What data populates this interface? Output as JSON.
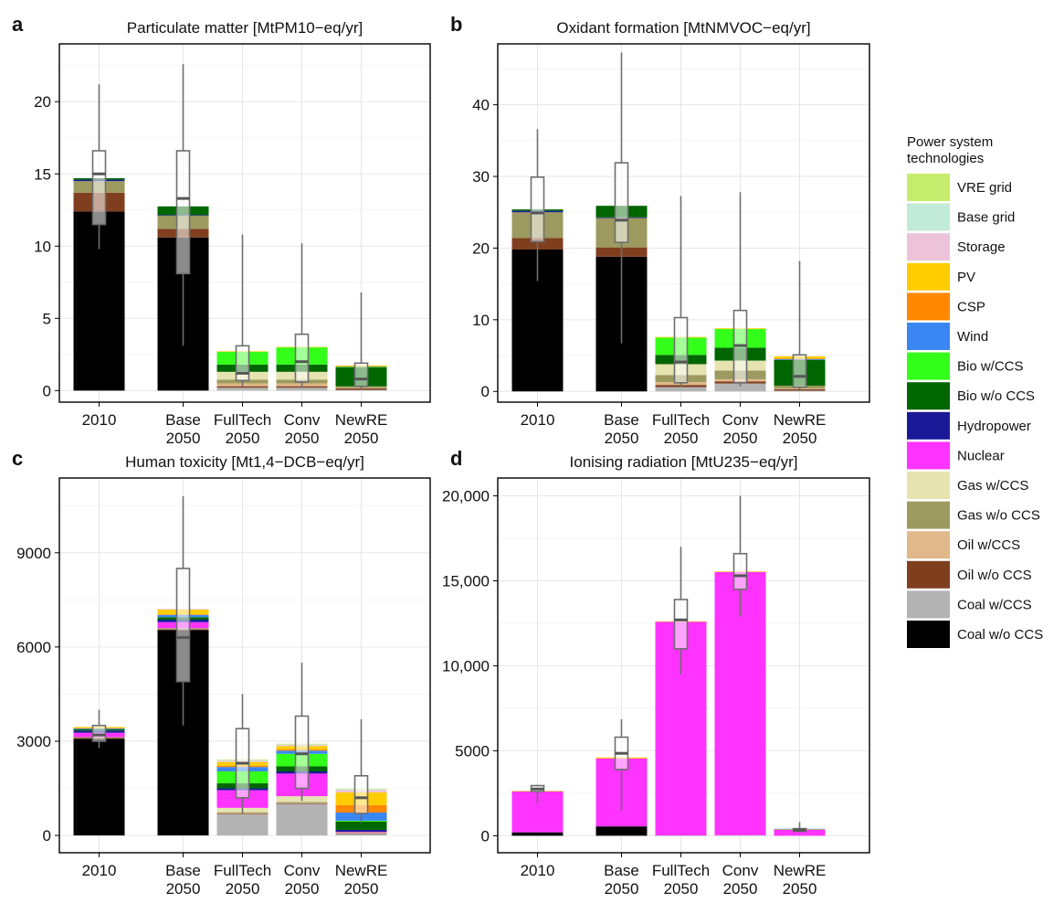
{
  "legend": {
    "title_lines": [
      "Power system",
      "technologies"
    ],
    "items": [
      {
        "label": "VRE grid",
        "color": "#c6ec6e"
      },
      {
        "label": "Base grid",
        "color": "#c2ead8"
      },
      {
        "label": "Storage",
        "color": "#ecc3d8"
      },
      {
        "label": "PV",
        "color": "#ffcc00"
      },
      {
        "label": "CSP",
        "color": "#ff8800"
      },
      {
        "label": "Wind",
        "color": "#3a86f2"
      },
      {
        "label": "Bio w/CCS",
        "color": "#33ff1a"
      },
      {
        "label": "Bio w/o CCS",
        "color": "#006600"
      },
      {
        "label": "Hydropower",
        "color": "#1a1a99"
      },
      {
        "label": "Nuclear",
        "color": "#ff33ff"
      },
      {
        "label": "Gas w/CCS",
        "color": "#e5e4b0"
      },
      {
        "label": "Gas w/o CCS",
        "color": "#9c9a5e"
      },
      {
        "label": "Oil w/CCS",
        "color": "#e1b889"
      },
      {
        "label": "Oil w/o CCS",
        "color": "#7f3f1f"
      },
      {
        "label": "Coal w/CCS",
        "color": "#b3b3b3"
      },
      {
        "label": "Coal w/o CCS",
        "color": "#000000"
      }
    ]
  },
  "chart_data": [
    {
      "letter": "a",
      "type": "bar",
      "stacked": true,
      "title": "Particulate matter [MtPM10−eq/yr]",
      "categories": [
        [
          "2010"
        ],
        [
          "Base",
          "2050"
        ],
        [
          "FullTech",
          "2050"
        ],
        [
          "Conv",
          "2050"
        ],
        [
          "NewRE",
          "2050"
        ]
      ],
      "ylim": [
        -0.8,
        24.0
      ],
      "yticks": [
        0,
        5,
        10,
        15,
        20
      ],
      "ytick_labels": [
        "0",
        "5",
        "10",
        "15",
        "20"
      ],
      "grid": true,
      "series": [
        {
          "name": "Coal w/o CCS",
          "values": [
            12.4,
            10.6,
            0.0,
            0.0,
            0.0
          ]
        },
        {
          "name": "Coal w/CCS",
          "values": [
            0.0,
            0.0,
            0.2,
            0.2,
            0.05
          ]
        },
        {
          "name": "Oil w/o CCS",
          "values": [
            1.3,
            0.6,
            0.1,
            0.1,
            0.1
          ]
        },
        {
          "name": "Oil w/CCS",
          "values": [
            0.0,
            0.0,
            0.2,
            0.2,
            0.05
          ]
        },
        {
          "name": "Gas w/o CCS",
          "values": [
            0.8,
            0.9,
            0.25,
            0.25,
            0.1
          ]
        },
        {
          "name": "Gas w/CCS",
          "values": [
            0.0,
            0.0,
            0.55,
            0.55,
            0.0
          ]
        },
        {
          "name": "Nuclear",
          "values": [
            0.0,
            0.0,
            0.0,
            0.0,
            0.0
          ]
        },
        {
          "name": "Hydropower",
          "values": [
            0.1,
            0.05,
            0.0,
            0.0,
            0.0
          ]
        },
        {
          "name": "Bio w/o CCS",
          "values": [
            0.1,
            0.6,
            0.5,
            0.5,
            1.3
          ]
        },
        {
          "name": "Bio w/CCS",
          "values": [
            0.0,
            0.0,
            0.9,
            1.2,
            0.05
          ]
        },
        {
          "name": "Wind",
          "values": [
            0.0,
            0.0,
            0.0,
            0.0,
            0.02
          ]
        },
        {
          "name": "CSP",
          "values": [
            0.0,
            0.0,
            0.0,
            0.0,
            0.02
          ]
        },
        {
          "name": "PV",
          "values": [
            0.0,
            0.0,
            0.02,
            0.02,
            0.05
          ]
        }
      ],
      "boxes": [
        {
          "min": 9.8,
          "q1": 11.5,
          "median": 15.0,
          "q3": 16.6,
          "max": 21.2
        },
        {
          "min": 3.1,
          "q1": 8.1,
          "median": 13.3,
          "q3": 16.6,
          "max": 22.6
        },
        {
          "min": 0.3,
          "q1": 0.7,
          "median": 1.2,
          "q3": 3.1,
          "max": 10.8
        },
        {
          "min": 0.2,
          "q1": 0.6,
          "median": 2.0,
          "q3": 3.9,
          "max": 10.2
        },
        {
          "min": 0.1,
          "q1": 0.3,
          "median": 0.8,
          "q3": 1.9,
          "max": 6.8
        }
      ]
    },
    {
      "letter": "b",
      "type": "bar",
      "stacked": true,
      "title": "Oxidant formation [MtNMVOC−eq/yr]",
      "categories": [
        [
          "2010"
        ],
        [
          "Base",
          "2050"
        ],
        [
          "FullTech",
          "2050"
        ],
        [
          "Conv",
          "2050"
        ],
        [
          "NewRE",
          "2050"
        ]
      ],
      "ylim": [
        -1.5,
        48.5
      ],
      "yticks": [
        0,
        10,
        20,
        30,
        40
      ],
      "ytick_labels": [
        "0",
        "10",
        "20",
        "30",
        "40"
      ],
      "grid": true,
      "series": [
        {
          "name": "Coal w/o CCS",
          "values": [
            19.8,
            18.8,
            0.0,
            0.0,
            0.0
          ]
        },
        {
          "name": "Coal w/CCS",
          "values": [
            0.0,
            0.0,
            0.6,
            1.1,
            0.1
          ]
        },
        {
          "name": "Oil w/o CCS",
          "values": [
            1.6,
            1.3,
            0.3,
            0.3,
            0.2
          ]
        },
        {
          "name": "Oil w/CCS",
          "values": [
            0.0,
            0.0,
            0.4,
            0.3,
            0.1
          ]
        },
        {
          "name": "Gas w/o CCS",
          "values": [
            3.6,
            4.1,
            1.0,
            1.2,
            0.4
          ]
        },
        {
          "name": "Gas w/CCS",
          "values": [
            0.0,
            0.0,
            1.5,
            1.4,
            0.0
          ]
        },
        {
          "name": "Nuclear",
          "values": [
            0.0,
            0.0,
            0.0,
            0.0,
            0.0
          ]
        },
        {
          "name": "Hydropower",
          "values": [
            0.2,
            0.1,
            0.0,
            0.0,
            0.0
          ]
        },
        {
          "name": "Bio w/o CCS",
          "values": [
            0.2,
            1.6,
            1.3,
            1.8,
            3.6
          ]
        },
        {
          "name": "Bio w/CCS",
          "values": [
            0.0,
            0.0,
            2.4,
            2.6,
            0.0
          ]
        },
        {
          "name": "Wind",
          "values": [
            0.0,
            0.0,
            0.0,
            0.0,
            0.1
          ]
        },
        {
          "name": "CSP",
          "values": [
            0.0,
            0.0,
            0.0,
            0.0,
            0.1
          ]
        },
        {
          "name": "PV",
          "values": [
            0.0,
            0.0,
            0.1,
            0.1,
            0.3
          ]
        }
      ],
      "boxes": [
        {
          "min": 15.4,
          "q1": 20.9,
          "median": 24.9,
          "q3": 29.9,
          "max": 36.6
        },
        {
          "min": 6.7,
          "q1": 20.8,
          "median": 23.9,
          "q3": 31.9,
          "max": 47.3
        },
        {
          "min": 0.6,
          "q1": 1.2,
          "median": 4.1,
          "q3": 10.3,
          "max": 27.3
        },
        {
          "min": 0.7,
          "q1": 1.2,
          "median": 6.4,
          "q3": 11.3,
          "max": 27.8
        },
        {
          "min": 0.3,
          "q1": 0.6,
          "median": 2.1,
          "q3": 5.1,
          "max": 18.2
        }
      ]
    },
    {
      "letter": "c",
      "type": "bar",
      "stacked": true,
      "title": "Human toxicity [Mt1,4−DCB−eq/yr]",
      "categories": [
        [
          "2010"
        ],
        [
          "Base",
          "2050"
        ],
        [
          "FullTech",
          "2050"
        ],
        [
          "Conv",
          "2050"
        ],
        [
          "NewRE",
          "2050"
        ]
      ],
      "ylim": [
        -550,
        11380
      ],
      "yticks": [
        0,
        3000,
        6000,
        9000
      ],
      "ytick_labels": [
        "0",
        "3000",
        "6000",
        "9000"
      ],
      "grid": true,
      "series": [
        {
          "name": "Coal w/o CCS",
          "values": [
            3080,
            6540,
            0,
            0,
            0
          ]
        },
        {
          "name": "Coal w/CCS",
          "values": [
            0,
            0,
            680,
            1010,
            60
          ]
        },
        {
          "name": "Oil w/o CCS",
          "values": [
            20,
            20,
            10,
            10,
            10
          ]
        },
        {
          "name": "Oil w/CCS",
          "values": [
            0,
            0,
            20,
            20,
            10
          ]
        },
        {
          "name": "Gas w/o CCS",
          "values": [
            30,
            40,
            30,
            30,
            20
          ]
        },
        {
          "name": "Gas w/CCS",
          "values": [
            0,
            0,
            140,
            180,
            0
          ]
        },
        {
          "name": "Nuclear",
          "values": [
            140,
            190,
            560,
            720,
            20
          ]
        },
        {
          "name": "Hydropower",
          "values": [
            70,
            80,
            60,
            70,
            60
          ]
        },
        {
          "name": "Bio w/o CCS",
          "values": [
            40,
            80,
            160,
            160,
            260
          ]
        },
        {
          "name": "Bio w/CCS",
          "values": [
            0,
            0,
            380,
            400,
            30
          ]
        },
        {
          "name": "Wind",
          "values": [
            30,
            70,
            140,
            100,
            260
          ]
        },
        {
          "name": "CSP",
          "values": [
            10,
            20,
            40,
            40,
            240
          ]
        },
        {
          "name": "PV",
          "values": [
            30,
            150,
            120,
            110,
            400
          ]
        },
        {
          "name": "Storage",
          "values": [
            0,
            20,
            40,
            30,
            80
          ]
        },
        {
          "name": "Base grid",
          "values": [
            0,
            0,
            20,
            20,
            10
          ]
        },
        {
          "name": "VRE grid",
          "values": [
            0,
            0,
            20,
            20,
            20
          ]
        }
      ],
      "boxes": [
        {
          "min": 2780,
          "q1": 3000,
          "median": 3200,
          "q3": 3500,
          "max": 4000
        },
        {
          "min": 3500,
          "q1": 4900,
          "median": 6300,
          "q3": 8500,
          "max": 10800
        },
        {
          "min": 700,
          "q1": 1200,
          "median": 2300,
          "q3": 3400,
          "max": 4500
        },
        {
          "min": 1100,
          "q1": 1500,
          "median": 2600,
          "q3": 3800,
          "max": 5500
        },
        {
          "min": 400,
          "q1": 700,
          "median": 1200,
          "q3": 1900,
          "max": 3700
        }
      ]
    },
    {
      "letter": "d",
      "type": "bar",
      "stacked": true,
      "title": "Ionising radiation [MtU235−eq/yr]",
      "categories": [
        [
          "2010"
        ],
        [
          "Base",
          "2050"
        ],
        [
          "FullTech",
          "2050"
        ],
        [
          "Conv",
          "2050"
        ],
        [
          "NewRE",
          "2050"
        ]
      ],
      "ylim": [
        -1000,
        21050
      ],
      "yticks": [
        0,
        5000,
        10000,
        15000,
        20000
      ],
      "ytick_labels": [
        "0",
        "5000",
        "10,000",
        "15,000",
        "20,000"
      ],
      "grid": true,
      "series": [
        {
          "name": "Coal w/o CCS",
          "values": [
            200,
            550,
            0,
            0,
            0
          ]
        },
        {
          "name": "Coal w/CCS",
          "values": [
            0,
            0,
            20,
            30,
            0
          ]
        },
        {
          "name": "Nuclear",
          "values": [
            2420,
            4000,
            12580,
            15500,
            350
          ]
        },
        {
          "name": "PV",
          "values": [
            20,
            60,
            20,
            20,
            50
          ]
        },
        {
          "name": "Wind",
          "values": [
            0,
            0,
            0,
            0,
            10
          ]
        }
      ],
      "boxes": [
        {
          "min": 1900,
          "q1": 2600,
          "median": 2750,
          "q3": 2950,
          "max": 3000
        },
        {
          "min": 1450,
          "q1": 3900,
          "median": 4850,
          "q3": 5800,
          "max": 6850
        },
        {
          "min": 9500,
          "q1": 11000,
          "median": 12700,
          "q3": 13900,
          "max": 17000
        },
        {
          "min": 12900,
          "q1": 14500,
          "median": 15300,
          "q3": 16600,
          "max": 20000
        },
        {
          "min": 200,
          "q1": 260,
          "median": 330,
          "q3": 420,
          "max": 800
        }
      ]
    }
  ]
}
